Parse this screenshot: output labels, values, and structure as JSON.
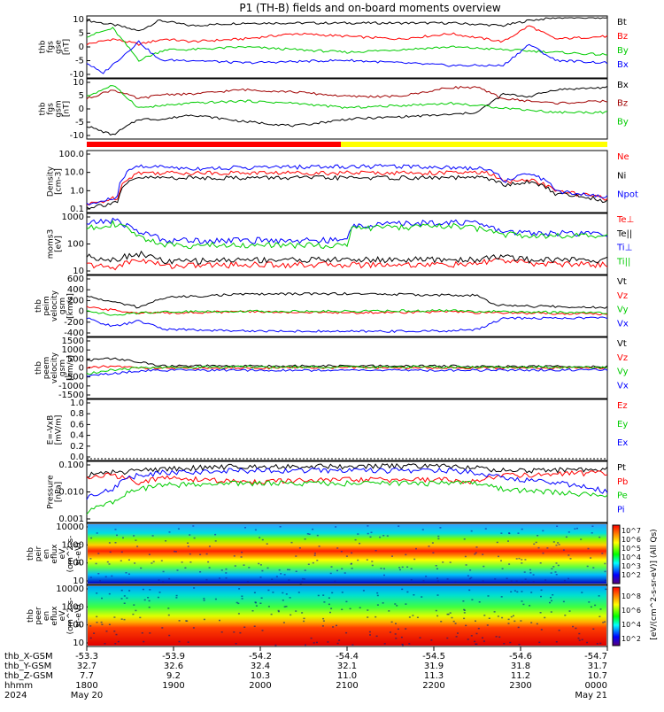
{
  "title": "P1 (TH-B) fields and on-board moments overview",
  "colors": {
    "black": "#000000",
    "red": "#ff0000",
    "darkred": "#a00000",
    "green": "#00cc00",
    "blue": "#0000ff",
    "yellow": "#ffff00"
  },
  "chart_data": [
    {
      "type": "line",
      "ylabel": [
        "thb",
        "fgs",
        "gse",
        "[nT]"
      ],
      "yticks": [
        "10",
        "5",
        "0",
        "-5",
        "-10"
      ],
      "ylim": [
        -10,
        12
      ],
      "series": [
        {
          "name": "Bt",
          "color": "#000000",
          "x": [
            0,
            0.03,
            0.06,
            0.1,
            0.14,
            0.2,
            0.3,
            0.5,
            0.7,
            0.8,
            0.85,
            0.9,
            1.0
          ],
          "values": [
            11,
            10,
            9,
            7,
            11,
            9,
            10,
            10,
            10,
            9,
            11,
            12,
            12
          ]
        },
        {
          "name": "Bz",
          "color": "#ff0000",
          "x": [
            0,
            0.05,
            0.1,
            0.15,
            0.2,
            0.3,
            0.4,
            0.5,
            0.6,
            0.7,
            0.8,
            0.85,
            0.9,
            1.0
          ],
          "values": [
            2,
            4,
            2,
            4,
            3,
            4,
            6,
            5,
            4,
            6,
            3,
            9,
            4,
            5
          ]
        },
        {
          "name": "By",
          "color": "#00cc00",
          "x": [
            0,
            0.05,
            0.1,
            0.15,
            0.2,
            0.3,
            0.4,
            0.5,
            0.6,
            0.7,
            0.8,
            0.9,
            1.0
          ],
          "values": [
            5,
            8,
            -4,
            0,
            0,
            1,
            0,
            -1,
            0,
            1,
            0,
            -1,
            -2
          ]
        },
        {
          "name": "Bx",
          "color": "#0000ff",
          "x": [
            0,
            0.03,
            0.06,
            0.1,
            0.14,
            0.2,
            0.3,
            0.5,
            0.7,
            0.8,
            0.85,
            0.9,
            1.0
          ],
          "values": [
            -5,
            -9,
            -4,
            3,
            -4,
            -4,
            -5,
            -4,
            -6,
            -6,
            2,
            -4,
            -5
          ]
        }
      ]
    },
    {
      "type": "line",
      "ylabel": [
        "thb",
        "fgs",
        "gsm",
        "[nT]"
      ],
      "yticks": [
        "10",
        "5",
        "0",
        "-5",
        "-10"
      ],
      "ylim": [
        -13,
        12
      ],
      "series": [
        {
          "name": "Bx",
          "color": "#000000",
          "x": [
            0,
            0.05,
            0.1,
            0.15,
            0.2,
            0.3,
            0.4,
            0.5,
            0.6,
            0.7,
            0.75,
            0.8,
            0.85,
            0.9,
            1.0
          ],
          "values": [
            -8,
            -12,
            -5,
            -5,
            -3,
            -6,
            -8,
            -5,
            -4,
            -3,
            -2,
            6,
            5,
            8,
            9
          ]
        },
        {
          "name": "Bz",
          "color": "#a00000",
          "x": [
            0,
            0.05,
            0.1,
            0.15,
            0.2,
            0.3,
            0.4,
            0.5,
            0.6,
            0.7,
            0.75,
            0.8,
            0.85,
            0.9,
            1.0
          ],
          "values": [
            4,
            8,
            4,
            6,
            6,
            8,
            7,
            5,
            5,
            9,
            9,
            4,
            3,
            2,
            3
          ]
        },
        {
          "name": "By",
          "color": "#00cc00",
          "x": [
            0,
            0.05,
            0.1,
            0.15,
            0.2,
            0.3,
            0.4,
            0.5,
            0.6,
            0.7,
            0.8,
            0.9,
            1.0
          ],
          "values": [
            5,
            10,
            0,
            1,
            2,
            3,
            2,
            0,
            1,
            2,
            0,
            -2,
            -2
          ]
        }
      ]
    },
    {
      "type": "line",
      "ylabel": [
        "Density",
        "[cm-3]"
      ],
      "yticks": [
        "100.0",
        "10.0",
        "1.0",
        "0.1"
      ],
      "log": true,
      "ylim": [
        0.1,
        100
      ],
      "series": [
        {
          "name": "Ne",
          "color": "#ff0000",
          "x": [
            0,
            0.03,
            0.06,
            0.1,
            0.2,
            0.4,
            0.6,
            0.77,
            0.8,
            0.85,
            0.9,
            1.0
          ],
          "values": [
            0.2,
            0.3,
            0.5,
            9,
            9,
            9,
            9,
            9,
            3,
            4,
            1,
            0.4
          ]
        },
        {
          "name": "Ni",
          "color": "#000000",
          "x": [
            0,
            0.03,
            0.06,
            0.1,
            0.2,
            0.4,
            0.6,
            0.77,
            0.8,
            0.85,
            0.9,
            1.0
          ],
          "values": [
            0.15,
            0.2,
            0.3,
            5,
            5,
            5,
            5,
            5,
            2,
            3,
            0.8,
            0.3
          ]
        },
        {
          "name": "Npot",
          "color": "#0000ff",
          "x": [
            0,
            0.03,
            0.06,
            0.1,
            0.2,
            0.4,
            0.6,
            0.77,
            0.8,
            0.85,
            0.9,
            1.0
          ],
          "values": [
            0.2,
            0.3,
            0.5,
            20,
            15,
            18,
            20,
            15,
            3,
            8,
            1,
            0.5
          ]
        }
      ]
    },
    {
      "type": "line",
      "ylabel": [
        "moms3",
        "[eV]"
      ],
      "yticks": [
        "1000",
        "100",
        "10"
      ],
      "log": true,
      "ylim": [
        10,
        1200
      ],
      "series": [
        {
          "name": "Te⊥",
          "color": "#ff0000",
          "x": [
            0,
            0.05,
            0.1,
            0.15,
            0.3,
            0.5,
            0.7,
            0.75,
            0.78,
            0.85,
            1.0
          ],
          "values": [
            20,
            15,
            30,
            18,
            20,
            20,
            20,
            20,
            30,
            22,
            20
          ]
        },
        {
          "name": "Te||",
          "color": "#000000",
          "x": [
            0,
            0.05,
            0.1,
            0.15,
            0.3,
            0.5,
            0.7,
            0.75,
            0.78,
            0.85,
            1.0
          ],
          "values": [
            40,
            30,
            50,
            25,
            30,
            30,
            30,
            30,
            40,
            30,
            30
          ]
        },
        {
          "name": "Ti⊥",
          "color": "#0000ff",
          "x": [
            0,
            0.05,
            0.1,
            0.15,
            0.3,
            0.5,
            0.51,
            0.7,
            0.75,
            0.8,
            1.0
          ],
          "values": [
            600,
            800,
            300,
            150,
            150,
            150,
            500,
            700,
            600,
            300,
            250
          ]
        },
        {
          "name": "Ti||",
          "color": "#00cc00",
          "x": [
            0,
            0.05,
            0.1,
            0.15,
            0.3,
            0.5,
            0.51,
            0.7,
            0.75,
            0.8,
            1.0
          ],
          "values": [
            400,
            600,
            200,
            100,
            100,
            100,
            400,
            500,
            400,
            250,
            200
          ]
        }
      ]
    },
    {
      "type": "line",
      "ylabel": [
        "thb",
        "peim",
        "velocity",
        "gsm",
        "[km/s]"
      ],
      "yticks": [
        "600",
        "400",
        "200",
        "0",
        "-200",
        "-400"
      ],
      "ylim": [
        -400,
        650
      ],
      "series": [
        {
          "name": "Vt",
          "color": "#000000",
          "x": [
            0,
            0.05,
            0.1,
            0.15,
            0.3,
            0.5,
            0.7,
            0.75,
            0.78,
            0.85,
            1.0
          ],
          "values": [
            300,
            200,
            100,
            280,
            340,
            350,
            320,
            320,
            150,
            120,
            100
          ]
        },
        {
          "name": "Vz",
          "color": "#ff0000",
          "x": [
            0,
            0.05,
            0.1,
            0.15,
            0.3,
            0.5,
            0.7,
            0.75,
            0.8,
            1.0
          ],
          "values": [
            100,
            50,
            0,
            0,
            20,
            0,
            20,
            0,
            0,
            -20
          ]
        },
        {
          "name": "Vy",
          "color": "#00cc00",
          "x": [
            0,
            0.05,
            0.1,
            0.15,
            0.3,
            0.5,
            0.7,
            0.8,
            1.0
          ],
          "values": [
            50,
            -50,
            0,
            20,
            30,
            30,
            40,
            20,
            0
          ]
        },
        {
          "name": "Vx",
          "color": "#0000ff",
          "x": [
            0,
            0.05,
            0.1,
            0.15,
            0.3,
            0.5,
            0.7,
            0.75,
            0.8,
            1.0
          ],
          "values": [
            -100,
            -250,
            -150,
            -300,
            -330,
            -340,
            -330,
            -300,
            -100,
            -90
          ]
        }
      ]
    },
    {
      "type": "line",
      "ylabel": [
        "thb",
        "peem",
        "velocity",
        "gsm",
        "[km/s]"
      ],
      "yticks": [
        "1500",
        "1000",
        "500",
        "0",
        "-500",
        "-1000",
        "-1500"
      ],
      "ylim": [
        -1500,
        1500
      ],
      "series": [
        {
          "name": "Vt",
          "color": "#000000",
          "x": [
            0,
            0.05,
            0.1,
            0.15,
            0.3,
            0.5,
            0.7,
            0.8,
            1.0
          ],
          "values": [
            400,
            500,
            300,
            100,
            100,
            100,
            100,
            80,
            80
          ]
        },
        {
          "name": "Vz",
          "color": "#ff0000",
          "x": [
            0,
            0.05,
            0.1,
            0.15,
            0.3,
            0.5,
            0.7,
            1.0
          ],
          "values": [
            0,
            100,
            0,
            0,
            0,
            20,
            0,
            0
          ]
        },
        {
          "name": "Vy",
          "color": "#00cc00",
          "x": [
            0,
            0.05,
            0.1,
            0.15,
            0.3,
            0.5,
            0.7,
            1.0
          ],
          "values": [
            -300,
            -100,
            0,
            50,
            50,
            50,
            50,
            30
          ]
        },
        {
          "name": "Vx",
          "color": "#0000ff",
          "x": [
            0,
            0.05,
            0.1,
            0.15,
            0.3,
            0.5,
            0.7,
            1.0
          ],
          "values": [
            -400,
            -300,
            -150,
            -120,
            -120,
            -120,
            -120,
            -100
          ]
        }
      ]
    },
    {
      "type": "line",
      "ylabel": [
        "E=-VxB",
        "[mV/m]"
      ],
      "yticks": [
        "1.0",
        "0.8",
        "0.6",
        "0.4",
        "0.2",
        "0.0"
      ],
      "ylim": [
        0,
        1
      ],
      "series": [
        {
          "name": "Ez",
          "color": "#ff0000",
          "x": [],
          "values": []
        },
        {
          "name": "Ey",
          "color": "#00cc00",
          "x": [],
          "values": []
        },
        {
          "name": "Ex",
          "color": "#0000ff",
          "x": [],
          "values": []
        }
      ]
    },
    {
      "type": "line",
      "ylabel": [
        "Pressure",
        "[nPa]"
      ],
      "yticks": [
        "0.100",
        "0.010",
        "0.001"
      ],
      "log": true,
      "ylim": [
        0.0005,
        0.12
      ],
      "series": [
        {
          "name": "Pt",
          "color": "#000000",
          "x": [
            0,
            0.05,
            0.1,
            0.15,
            0.3,
            0.5,
            0.7,
            0.75,
            0.78,
            0.85,
            1.0
          ],
          "values": [
            0.04,
            0.05,
            0.06,
            0.07,
            0.09,
            0.09,
            0.09,
            0.08,
            0.06,
            0.06,
            0.07
          ]
        },
        {
          "name": "Pb",
          "color": "#ff0000",
          "x": [
            0,
            0.05,
            0.1,
            0.15,
            0.3,
            0.5,
            0.7,
            0.75,
            0.8,
            0.85,
            1.0
          ],
          "values": [
            0.03,
            0.04,
            0.02,
            0.03,
            0.02,
            0.025,
            0.025,
            0.02,
            0.04,
            0.04,
            0.05
          ]
        },
        {
          "name": "Pe",
          "color": "#00cc00",
          "x": [
            0,
            0.05,
            0.1,
            0.15,
            0.3,
            0.5,
            0.7,
            0.75,
            0.8,
            1.0
          ],
          "values": [
            0.001,
            0.003,
            0.01,
            0.015,
            0.018,
            0.018,
            0.018,
            0.018,
            0.01,
            0.005
          ]
        },
        {
          "name": "Pi",
          "color": "#0000ff",
          "x": [
            0,
            0.05,
            0.1,
            0.15,
            0.3,
            0.5,
            0.7,
            0.75,
            0.8,
            1.0
          ],
          "values": [
            0.005,
            0.01,
            0.04,
            0.05,
            0.06,
            0.06,
            0.06,
            0.05,
            0.03,
            0.008
          ]
        }
      ]
    },
    {
      "type": "heatmap",
      "ylabel": [
        "thb",
        "peir",
        "en",
        "eflux",
        "eV",
        "(cm^2-s-",
        "sr-eV)"
      ],
      "yticks": [
        "10000",
        "1000",
        "100",
        "10"
      ]
    },
    {
      "type": "heatmap",
      "ylabel": [
        "thb",
        "peer",
        "en",
        "eflux",
        "eV",
        "(cm^2-s-",
        "sr-eV)"
      ],
      "yticks": [
        "10000",
        "1000",
        "100",
        "10"
      ]
    }
  ],
  "colorbar_label": "[eV/(cm^2-s-sr-eV)] (All Qs)",
  "colorbar_ticks": [
    "10^7",
    "10^6",
    "10^5",
    "10^4",
    "10^3",
    "10^2"
  ],
  "colorbar2_ticks": [
    "10^8",
    "10^6",
    "10^4",
    "10^2"
  ],
  "time_axis": {
    "rows": [
      {
        "label": "thb_X-GSM",
        "values": [
          "-53.3",
          "-53.9",
          "-54.2",
          "-54.4",
          "-54.5",
          "-54.6",
          "-54.7"
        ]
      },
      {
        "label": "thb_Y-GSM",
        "values": [
          "32.7",
          "32.6",
          "32.4",
          "32.1",
          "31.9",
          "31.8",
          "31.7"
        ]
      },
      {
        "label": "thb_Z-GSM",
        "values": [
          "7.7",
          "9.2",
          "10.3",
          "11.0",
          "11.3",
          "11.2",
          "10.7"
        ]
      },
      {
        "label": "hhmm",
        "values": [
          "1800",
          "1900",
          "2000",
          "2100",
          "2200",
          "2300",
          "0000"
        ]
      },
      {
        "label": "2024",
        "values": [
          "May 20",
          "",
          "",
          "",
          "",
          "",
          "May 21"
        ]
      }
    ]
  }
}
